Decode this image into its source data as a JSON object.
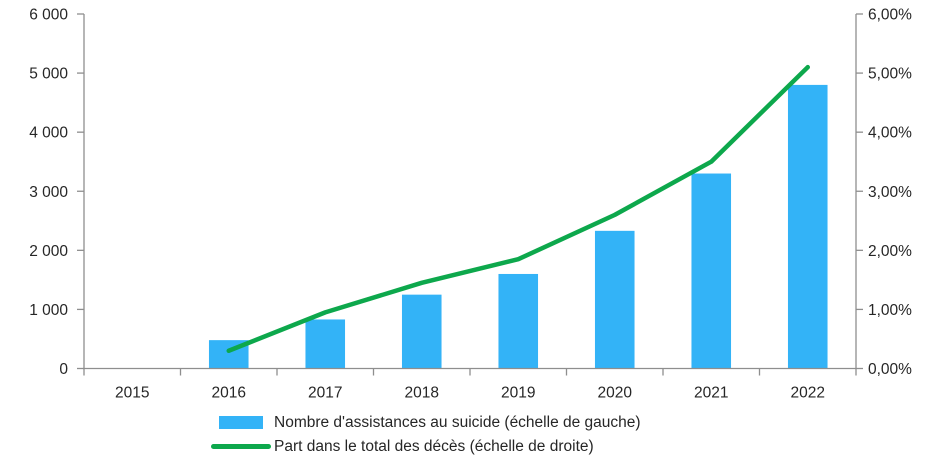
{
  "chart_data": {
    "type": "combo-bar-line",
    "title": "",
    "categories": [
      "2015",
      "2016",
      "2017",
      "2018",
      "2019",
      "2020",
      "2021",
      "2022"
    ],
    "series": [
      {
        "name": "Nombre d'assistances au suicide (échelle de gauche)",
        "type": "bar",
        "axis": "left",
        "color": "#33B3F7",
        "values": [
          null,
          480,
          830,
          1250,
          1600,
          2330,
          3300,
          4800
        ]
      },
      {
        "name": "Part dans le total des décès (échelle de droite)",
        "type": "line",
        "axis": "right",
        "color": "#0DA84C",
        "values": [
          null,
          0.3,
          0.95,
          1.45,
          1.85,
          2.6,
          3.5,
          5.1
        ]
      }
    ],
    "left_axis": {
      "min": 0,
      "max": 6000,
      "step": 1000,
      "tick_labels": [
        "6 000",
        "5 000",
        "4 000",
        "3 000",
        "2 000",
        "1 000",
        "0"
      ]
    },
    "right_axis": {
      "min": 0,
      "max": 6,
      "step": 1,
      "tick_labels": [
        "6,00%",
        "5,00%",
        "4,00%",
        "3,00%",
        "2,00%",
        "1,00%",
        "0,00%"
      ]
    },
    "grid": false,
    "legend_position": "bottom",
    "axis_color": "#8E8E8E",
    "text_color": "#262626"
  }
}
